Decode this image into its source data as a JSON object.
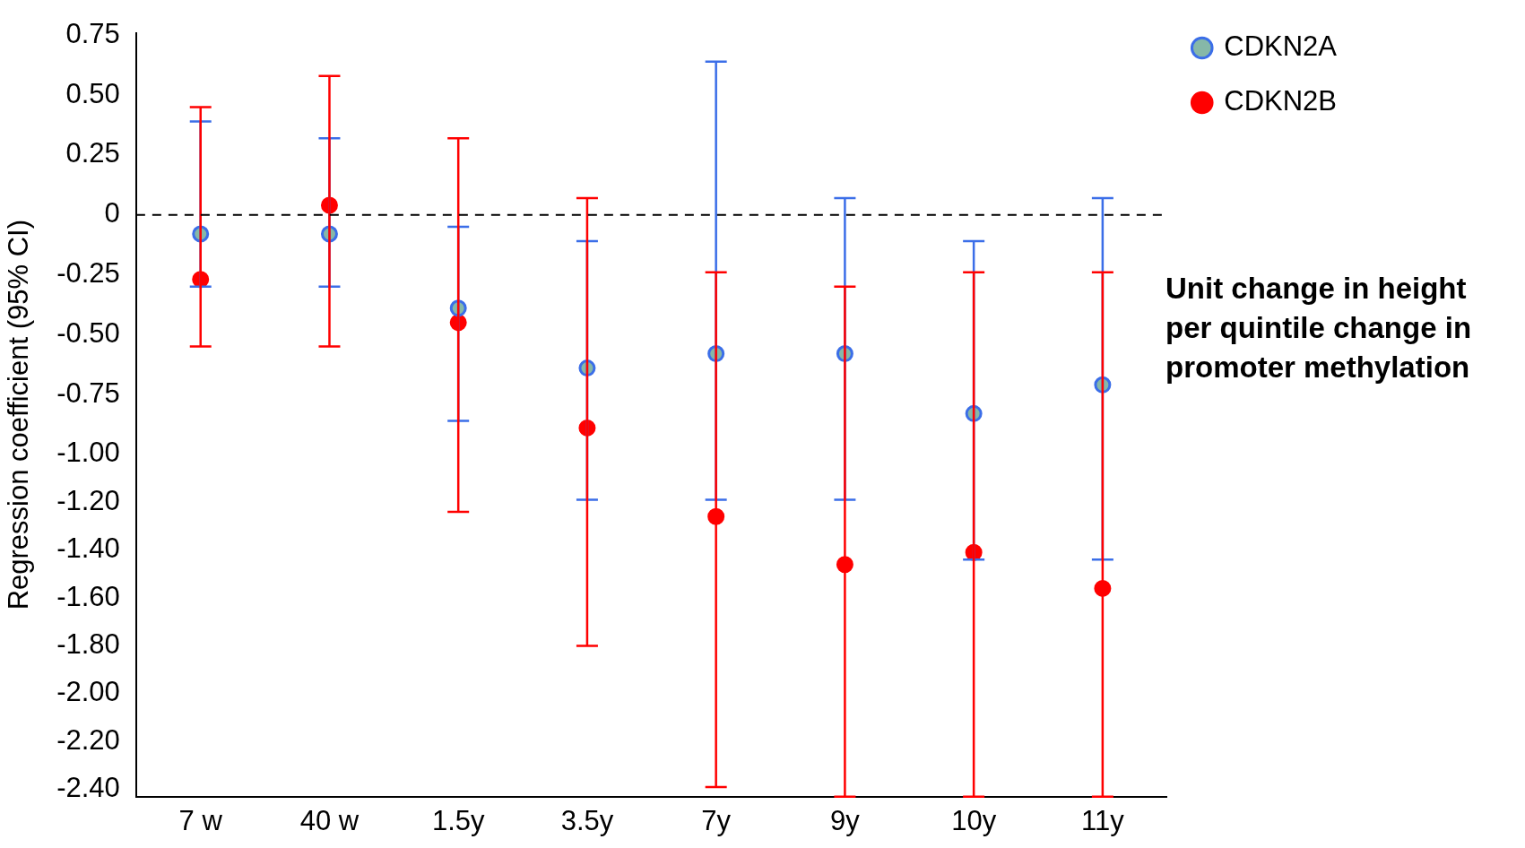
{
  "chart_data": {
    "type": "scatter",
    "ylabel": "Regression coefficient (95% CI)",
    "categories": [
      "7 w",
      "40 w",
      "1.5y",
      "3.5y",
      "7y",
      "9y",
      "10y",
      "11y"
    ],
    "series": [
      {
        "name": "CDKN2A",
        "color": "#3b6ee8",
        "values": [
          -0.08,
          -0.08,
          -0.39,
          -0.64,
          -0.58,
          -0.58,
          -0.83,
          -0.71
        ],
        "errors": [
          [
            -0.3,
            0.39
          ],
          [
            -0.3,
            0.32
          ],
          [
            -0.86,
            -0.05
          ],
          [
            -1.19,
            -0.11
          ],
          [
            -1.19,
            0.64
          ],
          [
            -1.19,
            0.07
          ],
          [
            -1.44,
            -0.11
          ],
          [
            -1.44,
            0.07
          ]
        ]
      },
      {
        "name": "CDKN2B",
        "color": "#ff0000",
        "values": [
          -0.27,
          0.04,
          -0.45,
          -0.89,
          -1.26,
          -1.46,
          -1.41,
          -1.56
        ],
        "errors": [
          [
            -0.55,
            0.45
          ],
          [
            -0.55,
            0.58
          ],
          [
            -1.24,
            0.32
          ],
          [
            -1.8,
            0.07
          ],
          [
            -2.39,
            -0.24
          ],
          [
            -2.43,
            -0.3
          ],
          [
            -2.43,
            -0.24
          ],
          [
            -2.43,
            -0.24
          ]
        ]
      }
    ],
    "ylim": [
      -2.43,
      0.76
    ],
    "yticks": [
      {
        "value": 0.75,
        "label": "0.75"
      },
      {
        "value": 0.5,
        "label": "0.50"
      },
      0.25,
      0,
      -0.25,
      {
        "value": -0.5,
        "label": "-0.50"
      },
      -0.75,
      {
        "value": -1,
        "label": "-1.00"
      },
      {
        "value": -1.2,
        "label": "-1.20"
      },
      {
        "value": -1.4,
        "label": "-1.40"
      },
      {
        "value": -1.6,
        "label": "-1.60"
      },
      {
        "value": -1.8,
        "label": "-1.80"
      },
      {
        "value": -2,
        "label": "-2.00"
      },
      {
        "value": -2.2,
        "label": "-2.20"
      },
      {
        "value": -2.4,
        "label": "-2.40"
      }
    ],
    "ref_lines": [
      {
        "axis": "y",
        "value": 0,
        "color": "#000000",
        "line_style": "dashed"
      }
    ],
    "annotations": [
      "Unit change in height per quintile change in promoter methylation"
    ],
    "legend": "top right",
    "marker": "circle",
    "grid": false
  }
}
